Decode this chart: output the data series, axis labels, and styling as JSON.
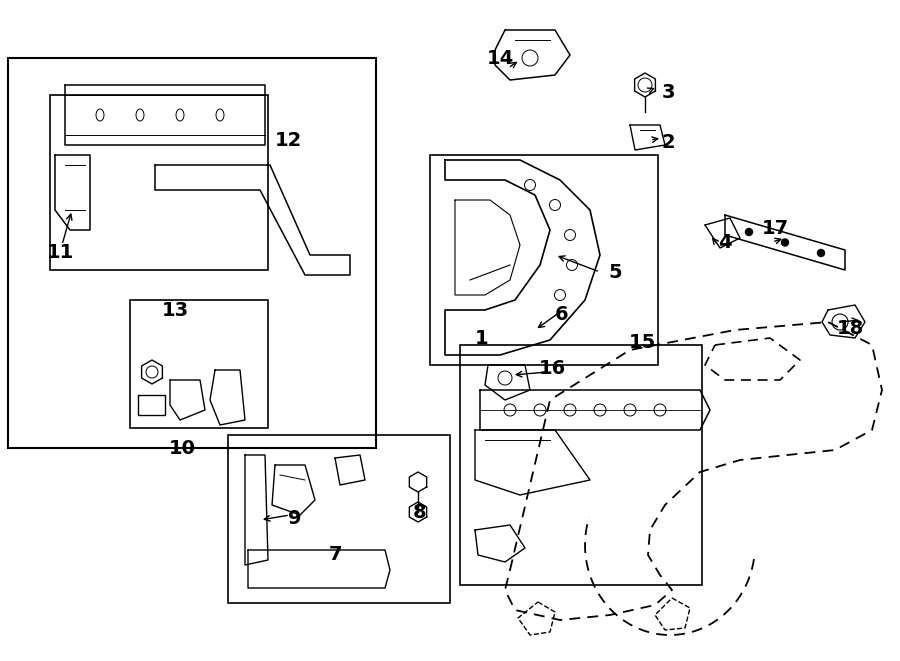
{
  "title": "",
  "bg_color": "#ffffff",
  "line_color": "#000000",
  "fig_width": 9.0,
  "fig_height": 6.61,
  "dpi": 100,
  "fontsize": 14,
  "arrow_color": "#000000"
}
